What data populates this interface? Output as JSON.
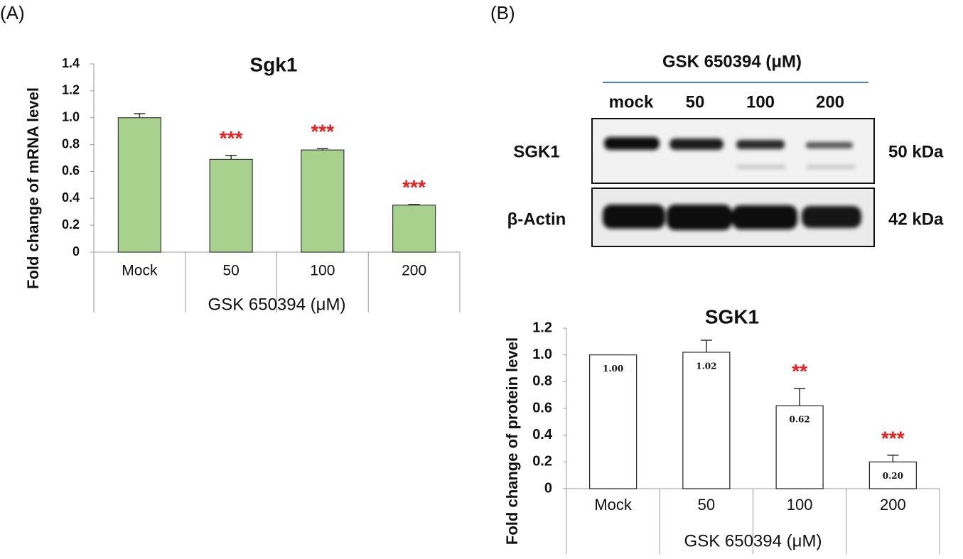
{
  "panel_labels": [
    "(A)",
    "(B)"
  ],
  "blot": {
    "treatment": "GSK 650394 (μM)",
    "lanes": [
      "mock",
      "50",
      "100",
      "200"
    ],
    "rows": [
      "SGK1",
      "β-Actin"
    ],
    "sizes": [
      "50 kDa",
      "42 kDa"
    ]
  },
  "chart_data": [
    {
      "type": "bar",
      "title": "Sgk1",
      "y_label": "Fold change of mRNA level",
      "x_label": "GSK 650394 (μM)",
      "categories": [
        "Mock",
        "50",
        "100",
        "200"
      ],
      "values": [
        1.0,
        0.69,
        0.76,
        0.35
      ],
      "errors": [
        0.03,
        0.03,
        0.01,
        0.005
      ],
      "annotations": [
        null,
        "***",
        "***",
        "***"
      ],
      "color": "#a9d18e",
      "edge_color": "#3a3a3a",
      "annotation_color": "#e8201f",
      "ylim": [
        0,
        1.4
      ],
      "yticks": [
        0,
        0.2,
        0.4,
        0.6,
        0.8,
        {
          "value": 1,
          "label": "1.0"
        },
        1.2,
        1.4
      ]
    },
    {
      "type": "bar",
      "title": "SGK1",
      "y_label": "Fold change of protein level",
      "x_label": "GSK 650394 (μM)",
      "categories": [
        "Mock",
        "50",
        "100",
        "200"
      ],
      "values": [
        1.0,
        1.02,
        0.62,
        0.2
      ],
      "value_labels": [
        "1.00",
        "1.02",
        "0.62",
        "0.20"
      ],
      "errors": [
        null,
        0.09,
        0.13,
        0.05
      ],
      "annotations": [
        null,
        null,
        "**",
        "***"
      ],
      "color": "#ffffff",
      "edge_color": "#222222",
      "annotation_color": "#e8201f",
      "ylim": [
        0,
        1.2
      ],
      "yticks": [
        0,
        0.2,
        0.4,
        0.6,
        0.8,
        {
          "value": 1,
          "label": "1.0"
        },
        1.2
      ]
    }
  ]
}
